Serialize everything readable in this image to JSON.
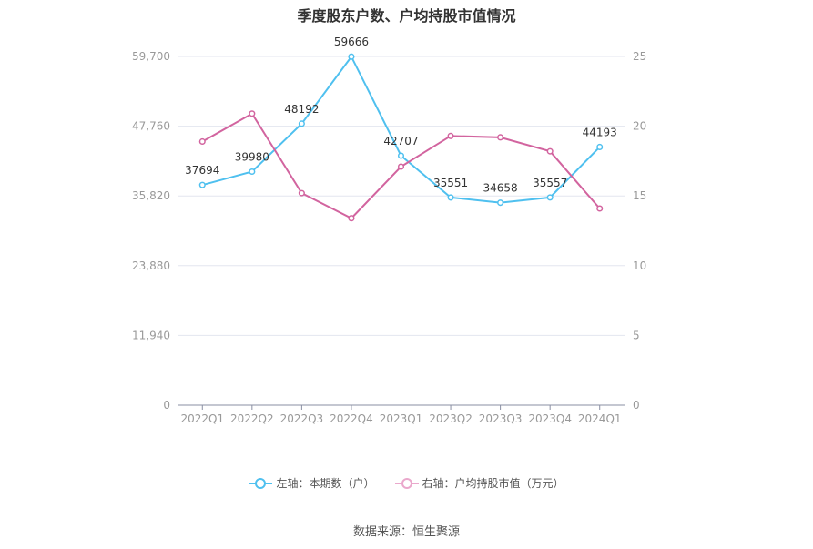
{
  "title": "季度股东户数、户均持股市值情况",
  "source": "数据来源：恒生聚源",
  "legend": [
    {
      "label": "左轴：本期数（户）",
      "color": "#4fc0ef"
    },
    {
      "label": "右轴：户均持股市值（万元）",
      "color": "#d2649f"
    }
  ],
  "chart_data": {
    "type": "line",
    "categories": [
      "2022Q1",
      "2022Q2",
      "2022Q3",
      "2022Q4",
      "2023Q1",
      "2023Q2",
      "2023Q3",
      "2023Q4",
      "2024Q1"
    ],
    "y_left": {
      "ticks": [
        "0",
        "11,940",
        "23,880",
        "35,820",
        "47,760",
        "59,700"
      ],
      "tick_values": [
        0,
        11940,
        23880,
        35820,
        47760,
        59700
      ],
      "range": [
        0,
        59700
      ]
    },
    "y_right": {
      "ticks": [
        "0",
        "5",
        "10",
        "15",
        "20",
        "25"
      ],
      "tick_values": [
        0,
        5,
        10,
        15,
        20,
        25
      ],
      "range": [
        0,
        25
      ]
    },
    "series": [
      {
        "name": "左轴：本期数（户）",
        "axis": "left",
        "color": "#4fc0ef",
        "values": [
          37694,
          39980,
          48192,
          59666,
          42707,
          35551,
          34658,
          35557,
          44193
        ],
        "labels": [
          "37694",
          "39980",
          "48192",
          "59666",
          "42707",
          "35551",
          "34658",
          "35557",
          "44193"
        ]
      },
      {
        "name": "右轴：户均持股市值（万元）",
        "axis": "right",
        "color": "#d2649f",
        "values": [
          18.9,
          20.9,
          15.2,
          13.4,
          17.1,
          19.3,
          19.2,
          18.2,
          14.1
        ]
      }
    ],
    "grid": true
  }
}
